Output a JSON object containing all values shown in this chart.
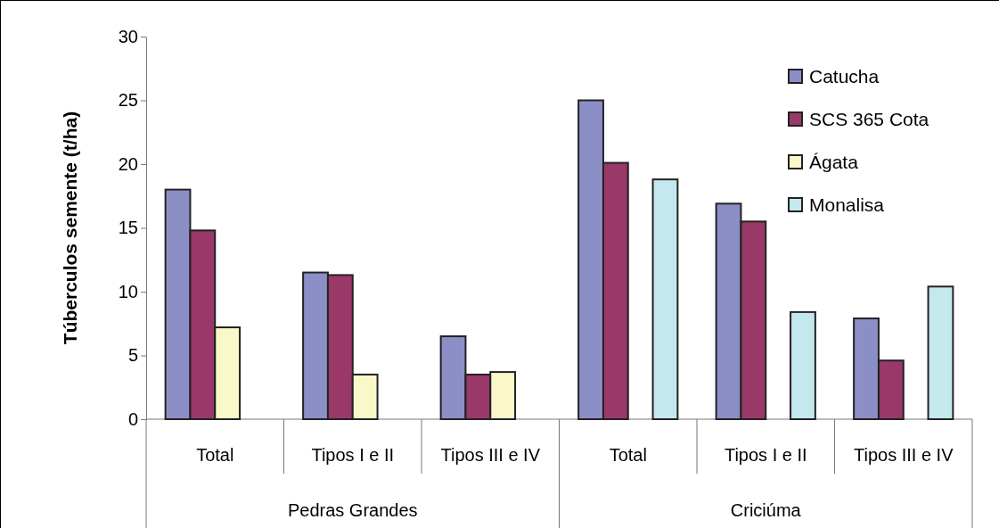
{
  "chart_data": {
    "type": "bar",
    "ylabel": "Túberculos semente (t/ha)",
    "categories": [
      "Total",
      "Tipos I e II",
      "Tipos III e IV",
      "Total",
      "Tipos I e II",
      "Tipos III e IV"
    ],
    "series": [
      {
        "name": "Catucha",
        "color": "#8c8fc6",
        "values": [
          18.0,
          11.5,
          6.5,
          25.0,
          16.9,
          7.9
        ]
      },
      {
        "name": "SCS 365 Cota",
        "color": "#993869",
        "values": [
          14.8,
          11.3,
          3.5,
          20.1,
          15.5,
          4.6
        ]
      },
      {
        "name": "Ágata",
        "color": "#faf7c8",
        "values": [
          7.2,
          3.5,
          3.7,
          null,
          null,
          null
        ]
      },
      {
        "name": "Monalisa",
        "color": "#c3e8ee",
        "values": [
          null,
          null,
          null,
          18.8,
          8.4,
          10.4
        ]
      }
    ],
    "annotations": [
      "Pedras Grandes",
      "Criciúma"
    ],
    "ylim": [
      0,
      30
    ],
    "yticks": [
      0,
      5,
      10,
      15,
      20,
      25,
      30
    ],
    "grid": false,
    "legend": "top right"
  }
}
